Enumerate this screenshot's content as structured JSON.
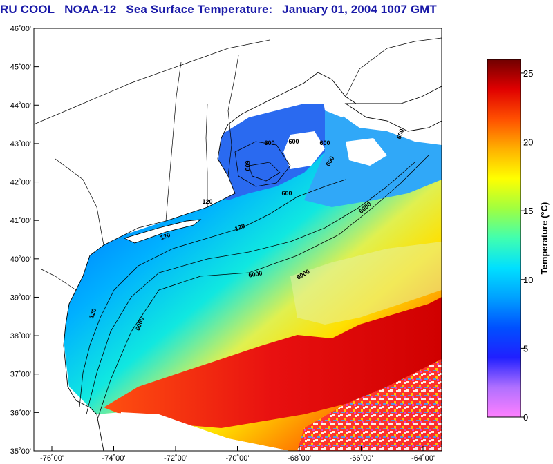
{
  "title": {
    "group": "RU COOL",
    "satellite": "NOAA-12",
    "product": "Sea Surface Temperature:",
    "datetime": "January 01, 2004 1007 GMT"
  },
  "map": {
    "lat_labels": [
      "46˚00'",
      "45˚00'",
      "44˚00'",
      "43˚00'",
      "42˚00'",
      "41˚00'",
      "40˚00'",
      "39˚00'",
      "38˚00'",
      "37˚00'",
      "36˚00'",
      "35˚00'"
    ],
    "lon_labels": [
      "-76˚00'",
      "-74˚00'",
      "-72˚00'",
      "-70˚00'",
      "-68˚00'",
      "-66˚00'",
      "-64˚00'"
    ],
    "lat_range": [
      35,
      46
    ],
    "lon_range": [
      -77,
      -63.2
    ],
    "contour_labels": [
      "120",
      "120",
      "120",
      "120",
      "600",
      "600",
      "600",
      "600",
      "600",
      "600",
      "600",
      "6000",
      "6000",
      "6000",
      "6000"
    ]
  },
  "colorbar": {
    "title": "Temperature (°C)",
    "ticks": [
      0,
      5,
      10,
      15,
      20,
      25
    ],
    "range": [
      0,
      26
    ],
    "colors": [
      "#ff80ff",
      "#b070ff",
      "#2020ff",
      "#0050ff",
      "#00a0ff",
      "#00e0ff",
      "#40ffb0",
      "#a0ff40",
      "#ffff00",
      "#ffb000",
      "#ff5000",
      "#e00000",
      "#700000"
    ]
  }
}
